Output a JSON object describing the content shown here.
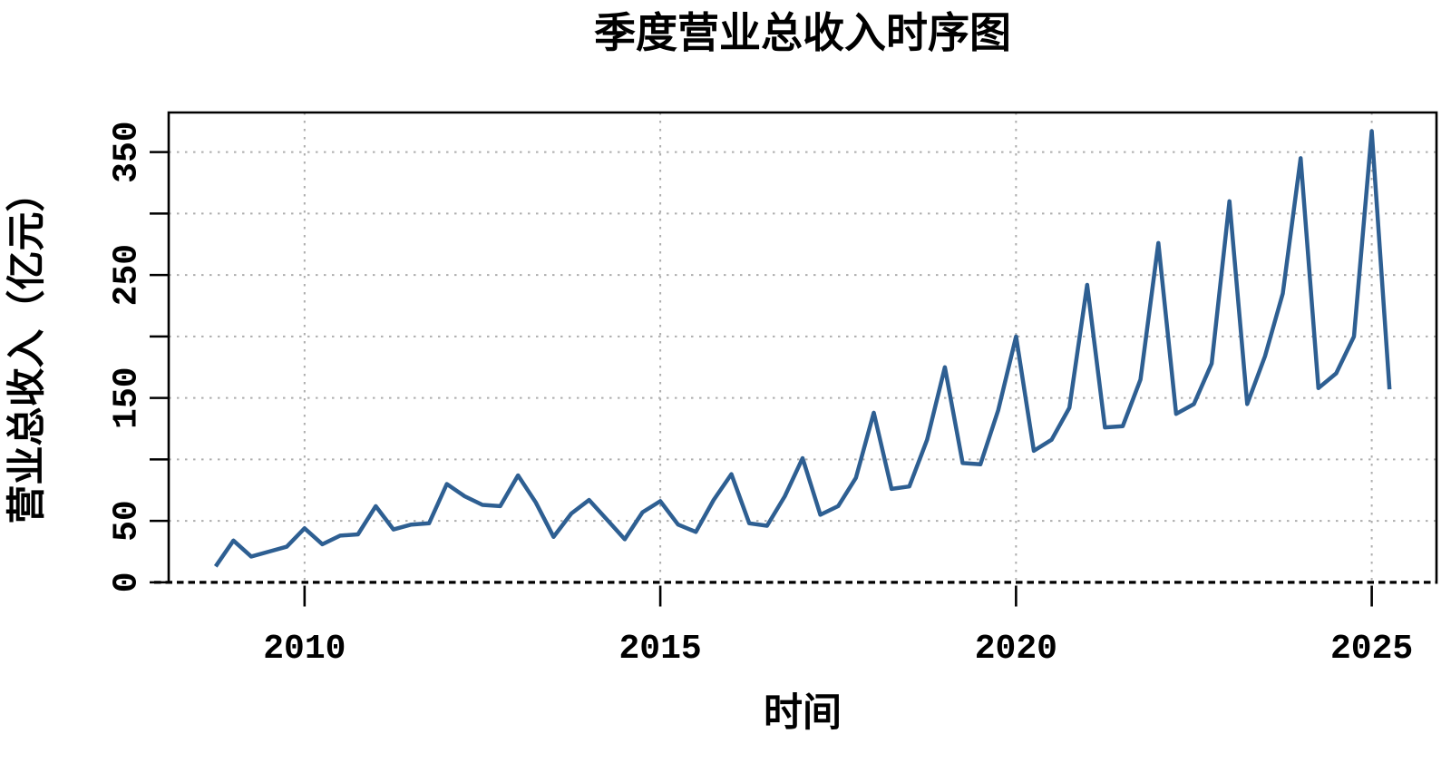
{
  "page": {
    "title": "季度营业总收入时序图"
  },
  "chart_data": {
    "type": "line",
    "title": "季度营业总收入时序图",
    "xlabel": "时间",
    "ylabel": "营业总收入（亿元）",
    "legend": "none",
    "grid": {
      "show": true,
      "color": "#aeaeae",
      "zero_line_color": "#000000"
    },
    "line_color": "#2e5f92",
    "background": "#ffffff",
    "xlim": [
      2008.09,
      2025.91
    ],
    "ylim": [
      -1.2,
      382.2
    ],
    "x_ticks": [
      {
        "value": 2010,
        "label": "2010"
      },
      {
        "value": 2015,
        "label": "2015"
      },
      {
        "value": 2020,
        "label": "2020"
      },
      {
        "value": 2025,
        "label": "2025"
      }
    ],
    "y_ticks": [
      {
        "value": 0,
        "label": "0"
      },
      {
        "value": 50,
        "label": "50"
      },
      {
        "value": 100,
        "label": ""
      },
      {
        "value": 150,
        "label": "150"
      },
      {
        "value": 200,
        "label": ""
      },
      {
        "value": 250,
        "label": "250"
      },
      {
        "value": 300,
        "label": ""
      },
      {
        "value": 350,
        "label": "350"
      }
    ],
    "series": [
      {
        "name": "季度营业总收入",
        "unit": "亿元",
        "frequency": "quarterly",
        "x_start": 2008.75,
        "x_step": 0.25,
        "values": [
          13,
          34,
          21,
          25,
          29,
          44,
          31,
          38,
          39,
          62,
          43,
          47,
          48,
          80,
          70,
          63,
          62,
          87,
          65,
          37,
          56,
          67,
          51,
          35,
          57,
          66,
          47,
          41,
          67,
          88,
          48,
          46,
          70,
          101,
          55,
          62,
          85,
          138,
          76,
          78,
          116,
          175,
          97,
          96,
          140,
          200,
          107,
          116,
          142,
          242,
          126,
          127,
          165,
          276,
          137,
          145,
          178,
          310,
          145,
          184,
          235,
          345,
          158,
          170,
          200,
          367,
          157
        ]
      }
    ]
  }
}
